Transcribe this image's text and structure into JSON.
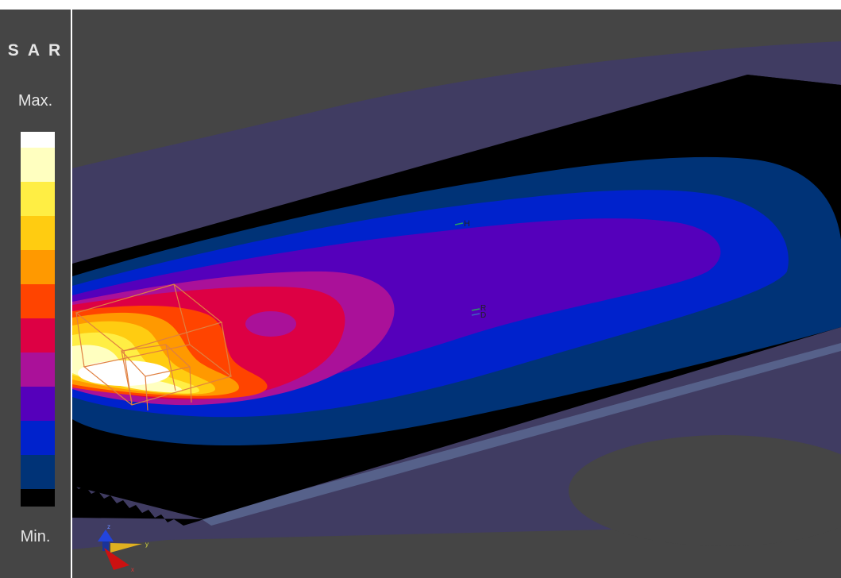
{
  "legend": {
    "title": "S A R",
    "max_label": "Max.",
    "min_label": "Min.",
    "colors": [
      "#ffffff",
      "#ffffc0",
      "#ffee44",
      "#ffcc11",
      "#ff9900",
      "#ff4400",
      "#dd0044",
      "#aa1199",
      "#5500bb",
      "#0022cc",
      "#003377",
      "#000000"
    ]
  },
  "viewport": {
    "background": "#454545",
    "phantom_color": "#403c62",
    "probe_labels": {
      "h": "H",
      "r": "R",
      "d": "D"
    },
    "axis_y_label": "y",
    "axis_x_label": "x",
    "axis_z_label": "z"
  }
}
